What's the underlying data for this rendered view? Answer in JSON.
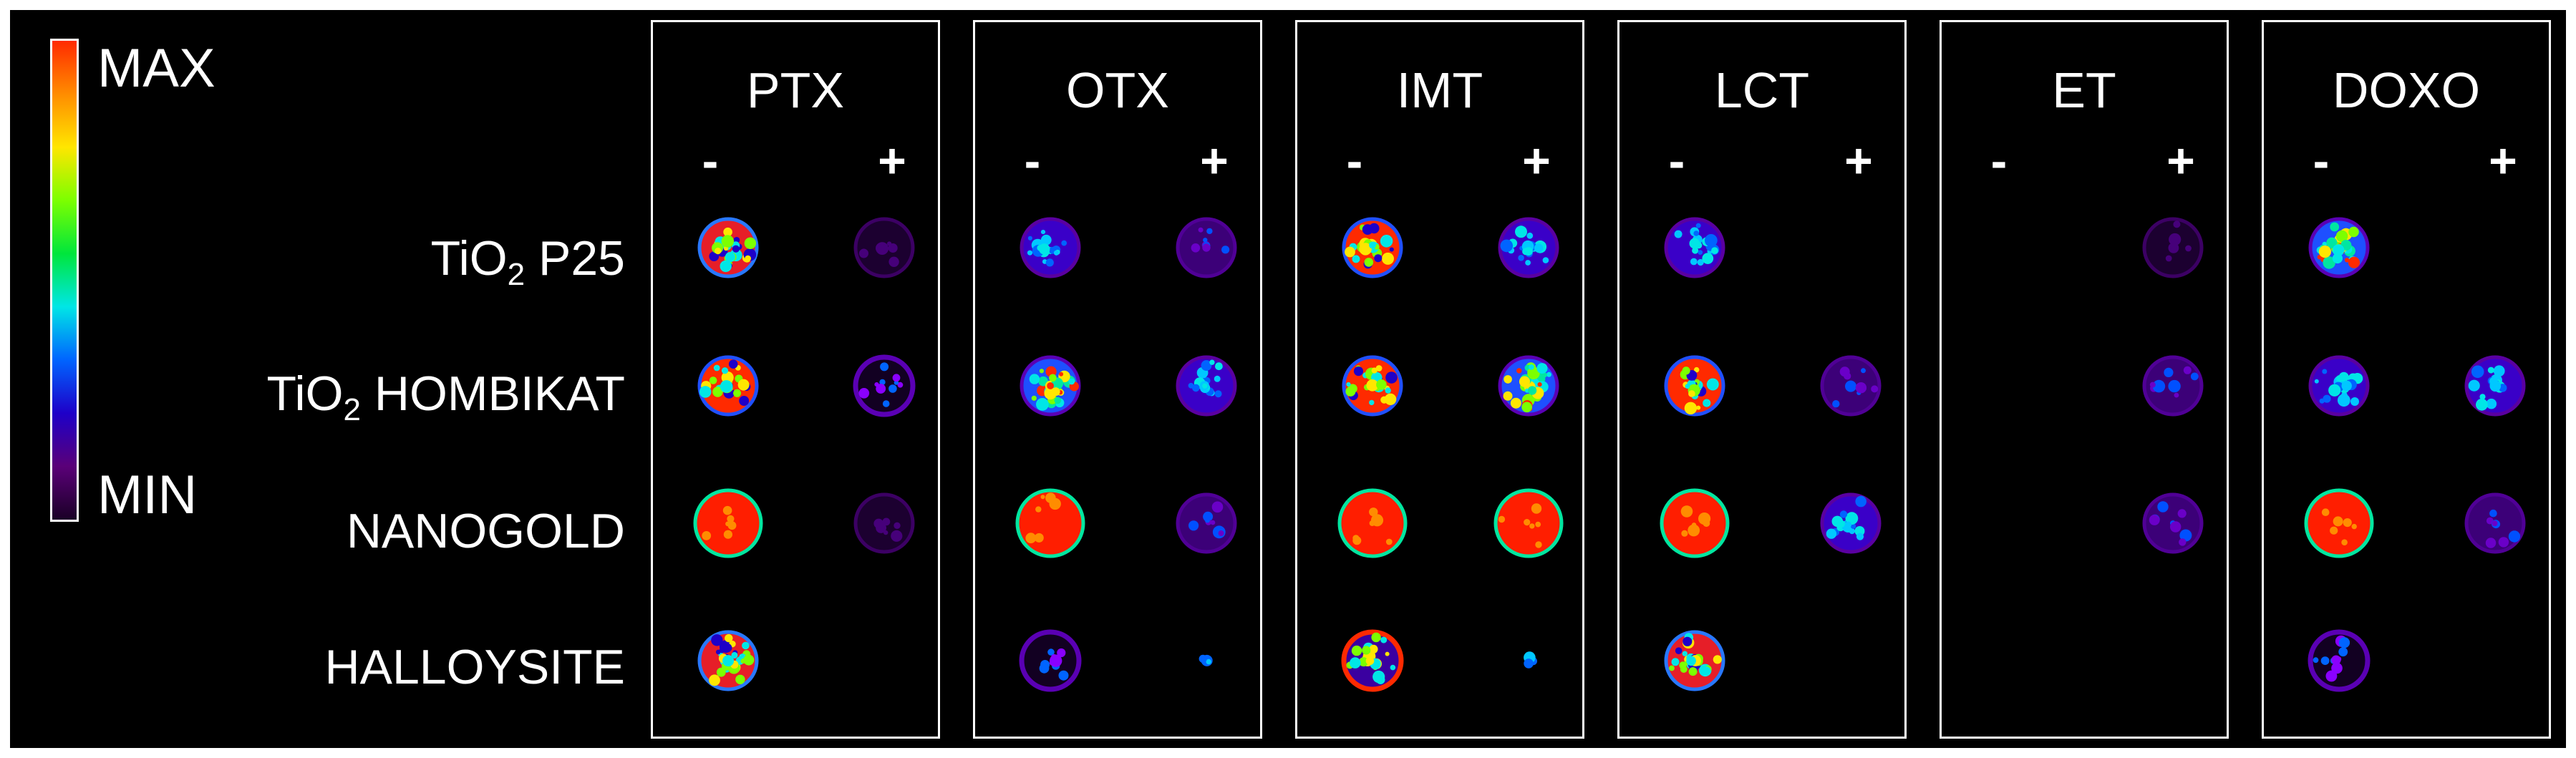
{
  "colorscale": {
    "max_label": "MAX",
    "min_label": "MIN",
    "colors": [
      "#ff2a00",
      "#ff8c00",
      "#ffe600",
      "#7cff00",
      "#00e63c",
      "#00e6e6",
      "#0064ff",
      "#1e00c8",
      "#5a0078",
      "#1a0026"
    ]
  },
  "rows": [
    {
      "main": "TiO",
      "sub": "2",
      "rest": " P25"
    },
    {
      "main": "TiO",
      "sub": "2",
      "rest": " HOMBIKAT"
    },
    {
      "main": "NANOGOLD",
      "sub": "",
      "rest": ""
    },
    {
      "main": "HALLOYSITE",
      "sub": "",
      "rest": ""
    }
  ],
  "minus_label": "-",
  "plus_label": "+",
  "panels": [
    {
      "title": "PTX",
      "spots": [
        [
          "mixed",
          "faint"
        ],
        [
          "redblue",
          "ring"
        ],
        [
          "red",
          "faint"
        ],
        [
          "mixed",
          null
        ]
      ]
    },
    {
      "title": "OTX",
      "spots": [
        [
          "blue",
          "violet"
        ],
        [
          "greenmix",
          "blue"
        ],
        [
          "red",
          "violet"
        ],
        [
          "ring",
          "dot"
        ]
      ]
    },
    {
      "title": "IMT",
      "spots": [
        [
          "redblue",
          "blue"
        ],
        [
          "redblue",
          "greenmix"
        ],
        [
          "red",
          "red"
        ],
        [
          "redring",
          "dot"
        ]
      ]
    },
    {
      "title": "LCT",
      "spots": [
        [
          "blue",
          null
        ],
        [
          "redblue",
          "violet"
        ],
        [
          "red",
          "blue"
        ],
        [
          "mixed",
          null
        ]
      ]
    },
    {
      "title": "ET",
      "spots": [
        [
          null,
          "faint"
        ],
        [
          null,
          "violet"
        ],
        [
          null,
          "violet"
        ],
        [
          null,
          null
        ]
      ]
    },
    {
      "title": "DOXO",
      "spots": [
        [
          "greenmix",
          null
        ],
        [
          "blue",
          "blue"
        ],
        [
          "red",
          "violet"
        ],
        [
          "ring",
          null
        ]
      ]
    }
  ]
}
